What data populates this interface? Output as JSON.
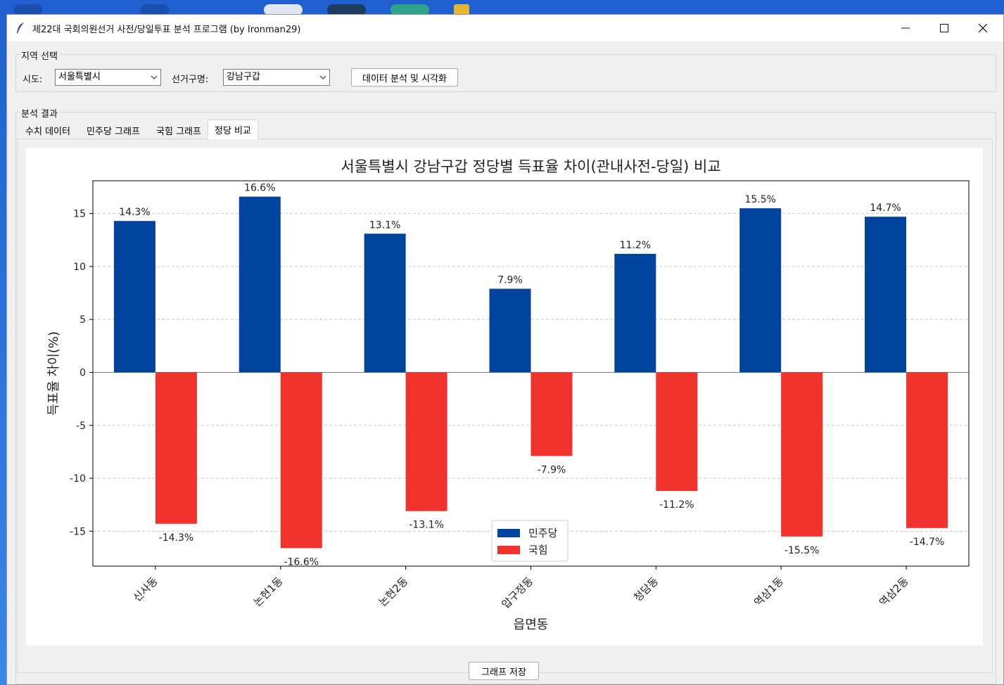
{
  "window": {
    "title": "제22대 국회의원선거 사전/당일투표 분석 프로그램 (by Ironman29)"
  },
  "region_group": {
    "title": "지역 선택",
    "sido_label": "시도:",
    "sido_value": "서울특별시",
    "district_label": "선거구명:",
    "district_value": "강남구갑",
    "analyze_button": "데이터 분석 및 시각화"
  },
  "result_group": {
    "title": "분석 결과",
    "tabs": [
      {
        "label": "수치 데이터",
        "active": false
      },
      {
        "label": "민주당 그래프",
        "active": false
      },
      {
        "label": "국힘 그래프",
        "active": false
      },
      {
        "label": "정당 비교",
        "active": true
      }
    ]
  },
  "save_button": "그래프 저장",
  "colors": {
    "dem": "#0044a0",
    "ppp": "#f2322d"
  },
  "chart_data": {
    "type": "bar",
    "title": "서울특별시 강남구갑 정당별 득표율 차이(관내사전-당일) 비교",
    "xlabel": "읍면동",
    "ylabel": "득표율 차이(%)",
    "categories": [
      "신사동",
      "논현1동",
      "논현2동",
      "압구정동",
      "청담동",
      "역삼1동",
      "역삼2동"
    ],
    "series": [
      {
        "name": "민주당",
        "values": [
          14.3,
          16.6,
          13.1,
          7.9,
          11.2,
          15.5,
          14.7
        ],
        "labels": [
          "14.3%",
          "16.6%",
          "13.1%",
          "7.9%",
          "11.2%",
          "15.5%",
          "14.7%"
        ]
      },
      {
        "name": "국힘",
        "values": [
          -14.3,
          -16.6,
          -13.1,
          -7.9,
          -11.2,
          -15.5,
          -14.7
        ],
        "labels": [
          "-14.3%",
          "-16.6%",
          "-13.1%",
          "-7.9%",
          "-11.2%",
          "-15.5%",
          "-14.7%"
        ]
      }
    ],
    "yticks": [
      15,
      10,
      5,
      0,
      -5,
      -10,
      -15
    ],
    "ytick_labels": [
      "15",
      "10",
      "5",
      "0",
      "-5",
      "-10",
      "-15"
    ],
    "ylim": [
      -18.3,
      18.1
    ],
    "grid": "horizontal-dashed",
    "legend": "lower-center"
  }
}
